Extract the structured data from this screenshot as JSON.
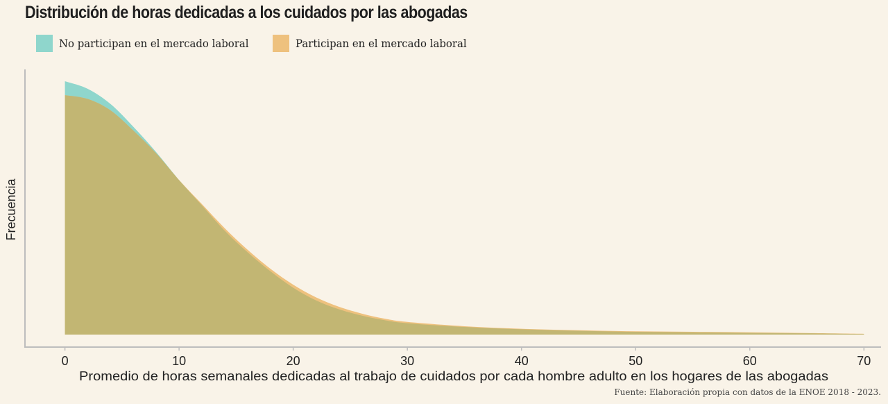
{
  "chart_data": {
    "type": "area",
    "title": "Distribución de horas dedicadas a los cuidados por las abogadas",
    "xlabel": "Promedio de horas semanales dedicadas al trabajo de cuidados por cada hombre adulto en los hogares de las abogadas",
    "ylabel": "Frecuencia",
    "xlim": [
      -3.5,
      71.5
    ],
    "ylim": [
      0,
      1.05
    ],
    "xticks": [
      0,
      10,
      20,
      30,
      40,
      50,
      60,
      70
    ],
    "grid": false,
    "legend_position": "top-left",
    "x": [
      0,
      2,
      4,
      6,
      8,
      10,
      12,
      14,
      16,
      18,
      20,
      22,
      24,
      26,
      28,
      30,
      35,
      40,
      45,
      50,
      55,
      60,
      65,
      70
    ],
    "series": [
      {
        "name": "No participan en el mercado laboral",
        "color": "#8fd6cc",
        "values": [
          1.0,
          0.97,
          0.91,
          0.82,
          0.72,
          0.61,
          0.51,
          0.41,
          0.325,
          0.25,
          0.185,
          0.135,
          0.1,
          0.075,
          0.057,
          0.045,
          0.03,
          0.021,
          0.015,
          0.011,
          0.009,
          0.007,
          0.005,
          0.002
        ]
      },
      {
        "name": "Participan en el mercado laboral",
        "color": "#eec17e",
        "values": [
          0.945,
          0.93,
          0.885,
          0.805,
          0.715,
          0.61,
          0.515,
          0.42,
          0.335,
          0.26,
          0.197,
          0.147,
          0.11,
          0.083,
          0.063,
          0.05,
          0.033,
          0.023,
          0.017,
          0.013,
          0.011,
          0.009,
          0.006,
          0.003
        ]
      }
    ],
    "overlap_color": "#c2b673",
    "source": "Fuente: Elaboración propia con datos de la ENOE 2018 - 2023."
  }
}
